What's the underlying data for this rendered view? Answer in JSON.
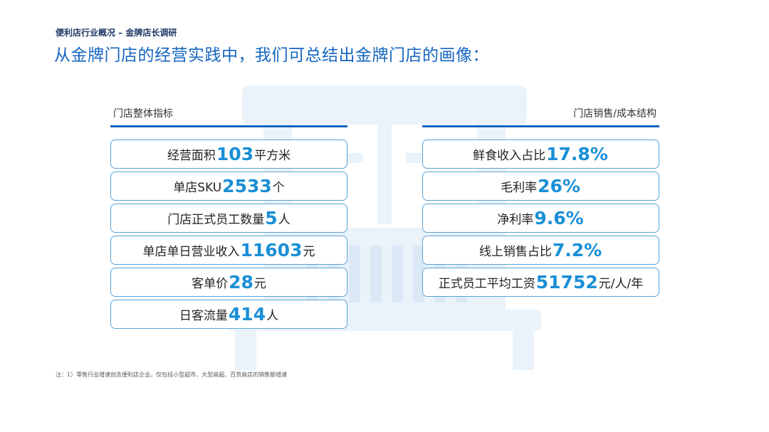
{
  "header": {
    "topic": "便利店行业概况 – 金牌店长调研",
    "title": "从金牌门店的经营实践中，我们可总结出金牌门店的画像："
  },
  "left": {
    "heading": "门店整体指标",
    "items": [
      {
        "label": "经营面积",
        "value": "103",
        "unit": "平方米"
      },
      {
        "label": "单店SKU",
        "value": "2533",
        "unit": "个"
      },
      {
        "label": "门店正式员工数量",
        "value": "5",
        "unit": "人"
      },
      {
        "label": "单店单日营业收入",
        "value": "11603",
        "unit": "元"
      },
      {
        "label": "客单价",
        "value": "28",
        "unit": "元"
      },
      {
        "label": "日客流量",
        "value": "414",
        "unit": "人"
      }
    ]
  },
  "right": {
    "heading": "门店销售/成本结构",
    "items": [
      {
        "label": "鲜食收入占比",
        "value": "17.8%",
        "unit": ""
      },
      {
        "label": "毛利率",
        "value": "26%",
        "unit": ""
      },
      {
        "label": "净利率",
        "value": "9.6%",
        "unit": ""
      },
      {
        "label": "线上销售占比",
        "value": "7.2%",
        "unit": ""
      },
      {
        "label": "正式员工平均工资",
        "value": "51752",
        "unit": "元/人/年"
      }
    ]
  },
  "footnote": "注：1）零售行业增速创去便利店企业，仅包括小型超市、大型商超、百货商店的销售额增速",
  "colors": {
    "accent": "#1565c0",
    "number": "#1a8fd6",
    "border": "#5aa3d9",
    "watermark": "#eaf2fa"
  },
  "decor": {
    "watermark_icon": "store-icon"
  }
}
